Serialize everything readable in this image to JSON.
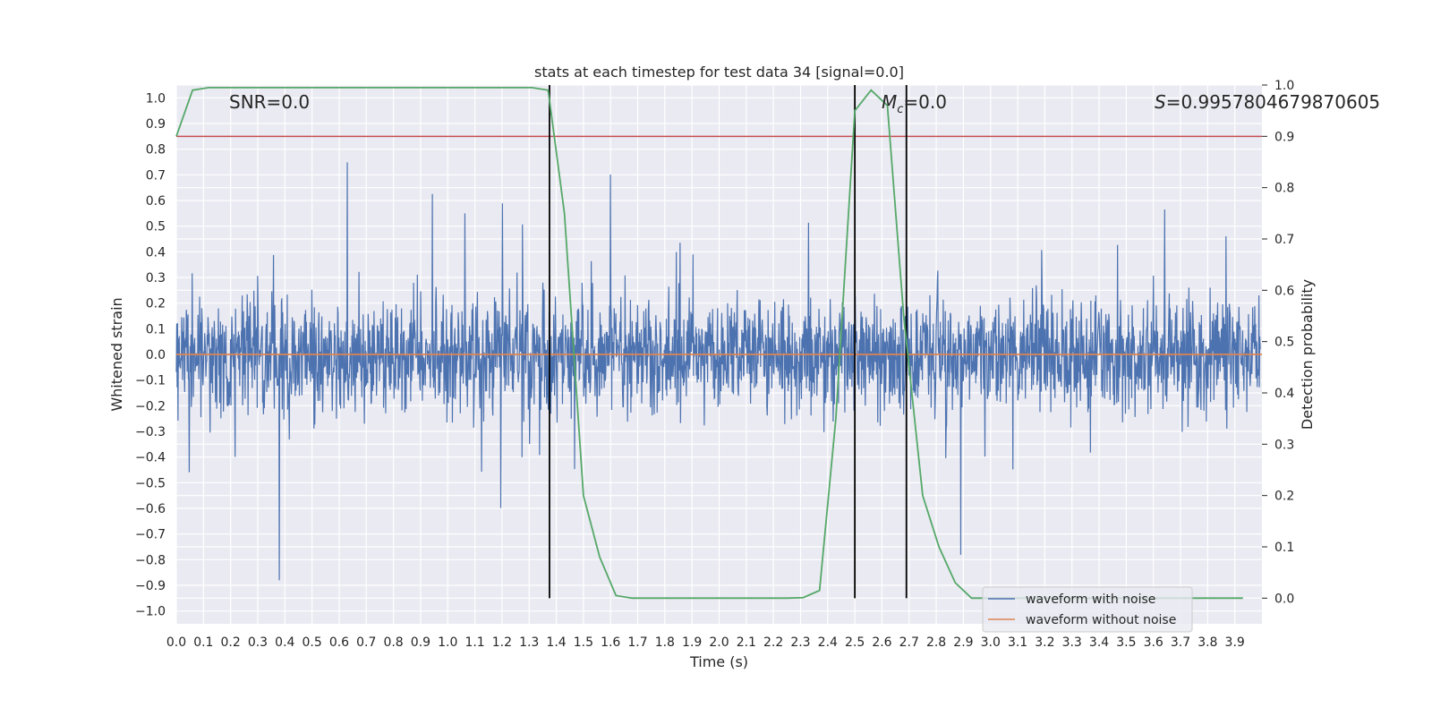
{
  "chart_data": {
    "type": "line",
    "title": "stats at each timestep for test data 34 [signal=0.0]",
    "xlabel": "Time (s)",
    "ylabel": "Whitened strain",
    "y2label": "Detection probability",
    "xlim": [
      0.0,
      4.0
    ],
    "ylim": [
      -1.05,
      1.05
    ],
    "y2lim": [
      -0.05,
      1.0
    ],
    "xticks": [
      "0.0",
      "0.1",
      "0.2",
      "0.3",
      "0.4",
      "0.5",
      "0.6",
      "0.7",
      "0.8",
      "0.9",
      "1.0",
      "1.1",
      "1.2",
      "1.3",
      "1.4",
      "1.5",
      "1.6",
      "1.7",
      "1.8",
      "1.9",
      "2.0",
      "2.1",
      "2.2",
      "2.3",
      "2.4",
      "2.5",
      "2.6",
      "2.7",
      "2.8",
      "2.9",
      "3.0",
      "3.1",
      "3.2",
      "3.3",
      "3.4",
      "3.5",
      "3.6",
      "3.7",
      "3.8",
      "3.9"
    ],
    "yticks": [
      "1.0",
      "0.9",
      "0.8",
      "0.7",
      "0.6",
      "0.5",
      "0.4",
      "0.3",
      "0.2",
      "0.1",
      "0.0",
      "-0.1",
      "-0.2",
      "-0.3",
      "-0.4",
      "-0.5",
      "-0.6",
      "-0.7",
      "-0.8",
      "-0.9",
      "-1.0"
    ],
    "y2ticks": [
      "1.0",
      "0.9",
      "0.8",
      "0.7",
      "0.6",
      "0.5",
      "0.4",
      "0.3",
      "0.2",
      "0.1",
      "0.0"
    ],
    "series": [
      {
        "name": "waveform with noise",
        "color": "#4c72b0",
        "style": "dense noise, amplitude approx -0.93..0.93"
      },
      {
        "name": "waveform without noise",
        "color": "#dd8452",
        "values_const": 0.0
      },
      {
        "name": "detection probability",
        "color": "#55a868",
        "axis": "right",
        "x": [
          0.0,
          0.06,
          0.12,
          0.18,
          0.25,
          0.31,
          0.37,
          0.43,
          0.5,
          0.56,
          0.62,
          0.68,
          0.75,
          0.81,
          0.87,
          0.93,
          1.0,
          1.06,
          1.12,
          1.18,
          1.25,
          1.31,
          1.37,
          1.43,
          1.5,
          1.56,
          1.62,
          1.68,
          1.75,
          1.81,
          1.87,
          1.93,
          2.0,
          2.06,
          2.12,
          2.18,
          2.25,
          2.31,
          2.37,
          2.43,
          2.5,
          2.56,
          2.62,
          2.68,
          2.75,
          2.81,
          2.87,
          2.93,
          3.0,
          3.06,
          3.12,
          3.18,
          3.25,
          3.31,
          3.37,
          3.43,
          3.5,
          3.56,
          3.62,
          3.68,
          3.75,
          3.81,
          3.87,
          3.93
        ],
        "values": [
          0.9,
          0.99,
          0.995,
          0.995,
          0.995,
          0.995,
          0.995,
          0.995,
          0.995,
          0.995,
          0.995,
          0.995,
          0.995,
          0.995,
          0.995,
          0.995,
          0.995,
          0.995,
          0.995,
          0.995,
          0.995,
          0.995,
          0.99,
          0.75,
          0.2,
          0.08,
          0.005,
          0.0,
          0.0,
          0.0,
          0.0,
          0.0,
          0.0,
          0.0,
          0.0,
          0.0,
          0.0,
          0.001,
          0.015,
          0.35,
          0.95,
          0.99,
          0.96,
          0.55,
          0.2,
          0.1,
          0.03,
          0.0,
          0.0,
          0.0,
          0.0,
          0.0,
          0.0,
          0.0,
          0.0,
          0.0,
          0.0,
          0.0,
          0.0,
          0.0,
          0.0,
          0.0,
          0.0,
          0.0
        ]
      }
    ],
    "threshold": {
      "axis": "right",
      "value": 0.9,
      "color": "#c44e52"
    },
    "vlines": [
      1.375,
      2.5,
      2.69
    ],
    "annotations": {
      "snr": "SNR=0.0",
      "mc_symbol": "M",
      "mc_sub": "c",
      "mc_value": "=0.0",
      "s_symbol": "S",
      "s_value": "=0.9957804679870605"
    },
    "legend": {
      "position": "lower-right",
      "entries": [
        {
          "label": "waveform with noise",
          "color": "#4c72b0"
        },
        {
          "label": "waveform without noise",
          "color": "#dd8452"
        }
      ]
    }
  }
}
